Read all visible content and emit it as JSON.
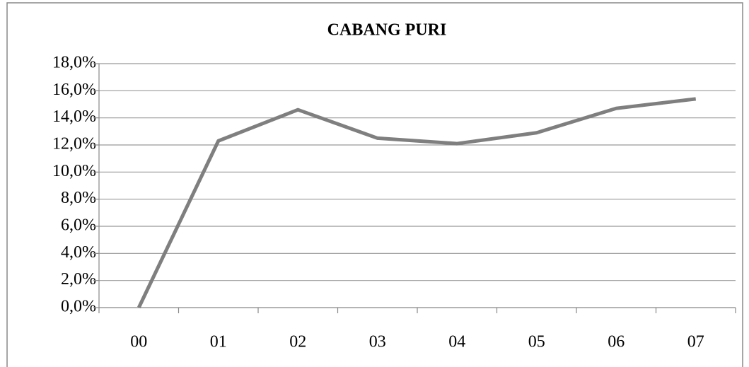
{
  "chart_data": {
    "type": "line",
    "title": "CABANG PURI",
    "categories": [
      "00",
      "01",
      "02",
      "03",
      "04",
      "05",
      "06",
      "07"
    ],
    "series": [
      {
        "name": "CABANG PURI",
        "color": "#7f7f7f",
        "values": [
          0,
          12.3,
          14.6,
          12.5,
          12.1,
          12.9,
          14.7,
          15.4
        ]
      }
    ],
    "ylim": [
      0,
      18
    ],
    "yticks": [
      {
        "value": 0,
        "label": "0,0%"
      },
      {
        "value": 2,
        "label": "2,0%"
      },
      {
        "value": 4,
        "label": "4,0%"
      },
      {
        "value": 6,
        "label": "6,0%"
      },
      {
        "value": 8,
        "label": "8,0%"
      },
      {
        "value": 10,
        "label": "10,0%"
      },
      {
        "value": 12,
        "label": "12,0%"
      },
      {
        "value": 14,
        "label": "14,0%"
      },
      {
        "value": 16,
        "label": "16,0%"
      },
      {
        "value": 18,
        "label": "18,0%"
      }
    ],
    "grid": true
  }
}
